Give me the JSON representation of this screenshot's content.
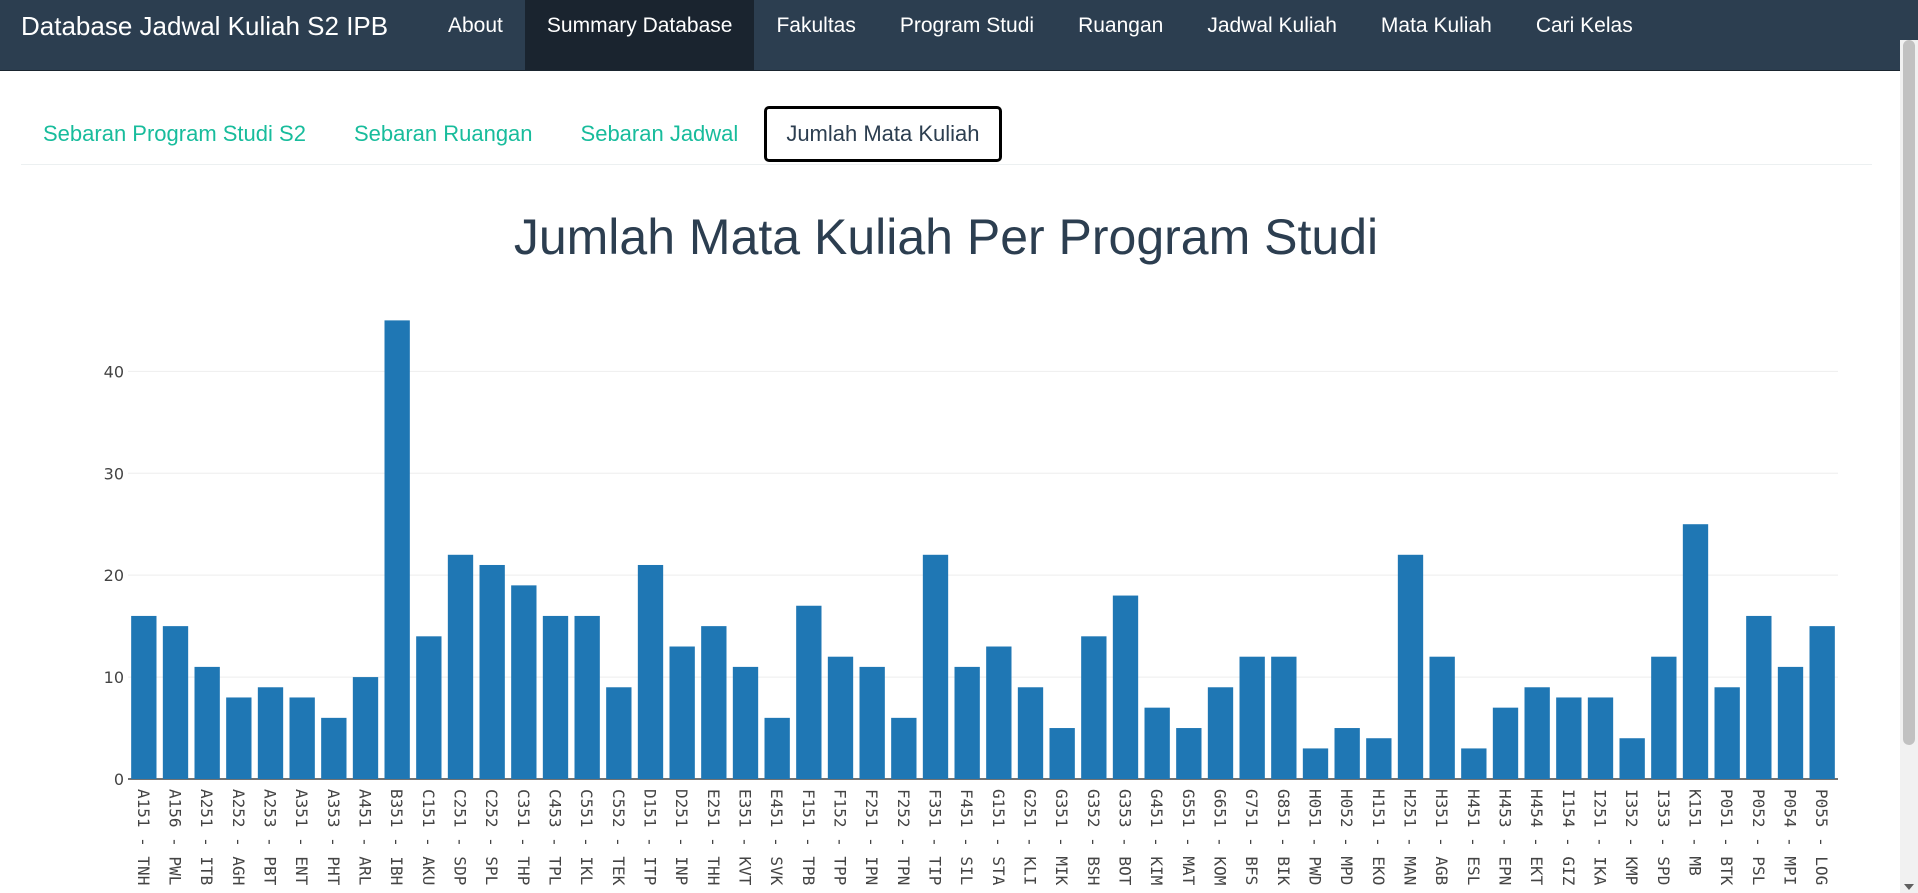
{
  "navbar": {
    "brand": "Database Jadwal Kuliah S2 IPB",
    "items": [
      {
        "label": "About",
        "active": false
      },
      {
        "label": "Summary Database",
        "active": true
      },
      {
        "label": "Fakultas",
        "active": false
      },
      {
        "label": "Program Studi",
        "active": false
      },
      {
        "label": "Ruangan",
        "active": false
      },
      {
        "label": "Jadwal Kuliah",
        "active": false
      },
      {
        "label": "Mata Kuliah",
        "active": false
      },
      {
        "label": "Cari Kelas",
        "active": false
      }
    ]
  },
  "tabs": [
    {
      "label": "Sebaran Program Studi S2",
      "active": false
    },
    {
      "label": "Sebaran Ruangan",
      "active": false
    },
    {
      "label": "Sebaran Jadwal",
      "active": false
    },
    {
      "label": "Jumlah Mata Kuliah",
      "active": true
    }
  ],
  "colors": {
    "navbar": "#2c3e50",
    "accent": "#18bc9c",
    "bar": "#1f77b4"
  },
  "chart_data": {
    "type": "bar",
    "title": "Jumlah Mata Kuliah Per Program Studi",
    "xlabel": "",
    "ylabel": "",
    "ylim": [
      0,
      47
    ],
    "yticks": [
      0,
      10,
      20,
      30,
      40
    ],
    "grid": true,
    "categories": [
      "A151 - TNH",
      "A156 - PWL",
      "A251 - ITB",
      "A252 - AGH",
      "A253 - PBT",
      "A351 - ENT",
      "A353 - PHT",
      "A451 - ARL",
      "B351 - IBH",
      "C151 - AKU",
      "C251 - SDP",
      "C252 - SPL",
      "C351 - THP",
      "C453 - TPL",
      "C551 - IKL",
      "C552 - TEK",
      "D151 - ITP",
      "D251 - INP",
      "E251 - THH",
      "E351 - KVT",
      "E451 - SVK",
      "F151 - TPB",
      "F152 - TPP",
      "F251 - IPN",
      "F252 - TPN",
      "F351 - TIP",
      "F451 - SIL",
      "G151 - STA",
      "G251 - KLI",
      "G351 - MIK",
      "G352 - BSH",
      "G353 - BOT",
      "G451 - KIM",
      "G551 - MAT",
      "G651 - KOM",
      "G751 - BFS",
      "G851 - BIK",
      "H051 - PWD",
      "H052 - MPD",
      "H151 - EKO",
      "H251 - MAN",
      "H351 - AGB",
      "H451 - ESL",
      "H453 - EPN",
      "H454 - EKT",
      "I154 - GIZ",
      "I251 - IKA",
      "I352 - KMP",
      "I353 - SPD",
      "K151 - MB",
      "P051 - BTK",
      "P052 - PSL",
      "P054 - MPI",
      "P055 - LOG"
    ],
    "values": [
      16,
      15,
      11,
      8,
      9,
      8,
      6,
      10,
      45,
      14,
      22,
      21,
      19,
      16,
      16,
      9,
      21,
      13,
      15,
      11,
      6,
      17,
      12,
      11,
      6,
      22,
      11,
      13,
      9,
      5,
      14,
      18,
      7,
      5,
      9,
      12,
      12,
      3,
      5,
      4,
      22,
      12,
      3,
      7,
      9,
      8,
      8,
      4,
      12,
      25,
      9,
      16,
      11,
      15
    ]
  }
}
